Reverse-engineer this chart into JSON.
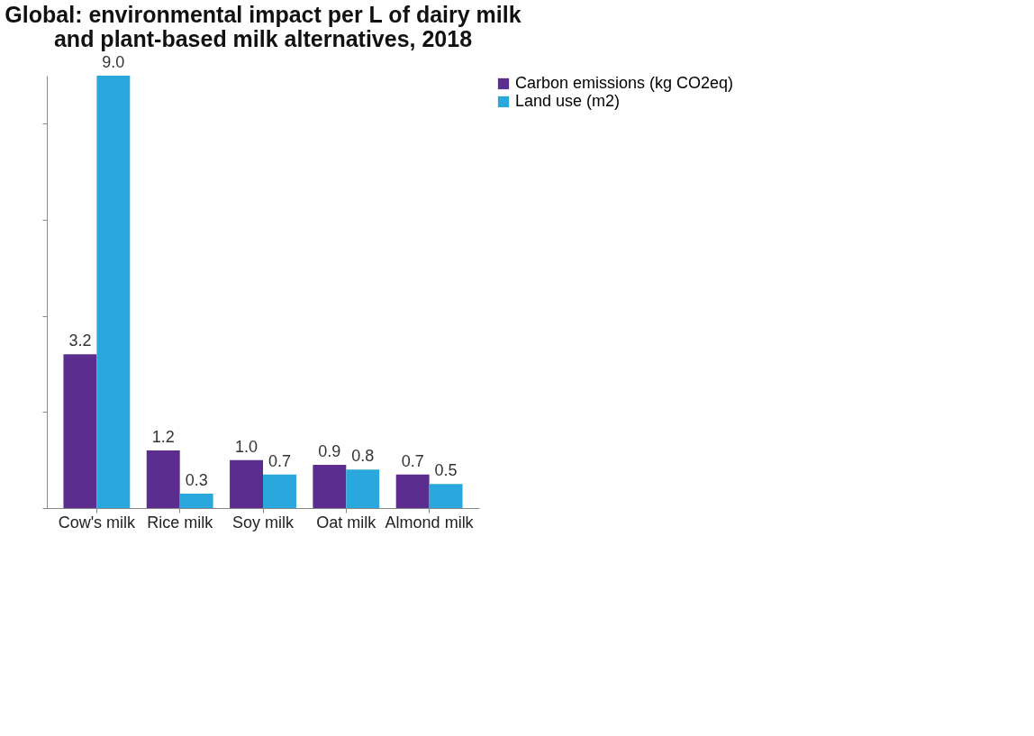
{
  "chart_data": {
    "type": "bar",
    "title": "Global: environmental impact per L of dairy milk and plant-based milk alternatives, 2018",
    "categories": [
      "Cow's milk",
      "Rice milk",
      "Soy milk",
      "Oat milk",
      "Almond milk"
    ],
    "series": [
      {
        "name": "Carbon emissions (kg CO2eq)",
        "color": "#5b2d8e",
        "values": [
          3.2,
          1.2,
          1.0,
          0.9,
          0.7
        ],
        "value_labels": [
          "3.2",
          "1.2",
          "1.0",
          "0.9",
          "0.7"
        ]
      },
      {
        "name": "Land use (m2)",
        "color": "#2aa7dc",
        "values": [
          9.0,
          0.3,
          0.7,
          0.8,
          0.5
        ],
        "value_labels": [
          "9.0",
          "0.3",
          "0.7",
          "0.8",
          "0.5"
        ]
      }
    ],
    "ylim": [
      0,
      9
    ],
    "yticks": [
      {
        "value": 0,
        "label": null
      },
      {
        "value": 2,
        "label": null
      },
      {
        "value": 4,
        "label": null
      },
      {
        "value": 6,
        "label": null
      },
      {
        "value": 8,
        "label": null
      }
    ],
    "tick_labels": "x",
    "grid": false,
    "legend": "right"
  }
}
